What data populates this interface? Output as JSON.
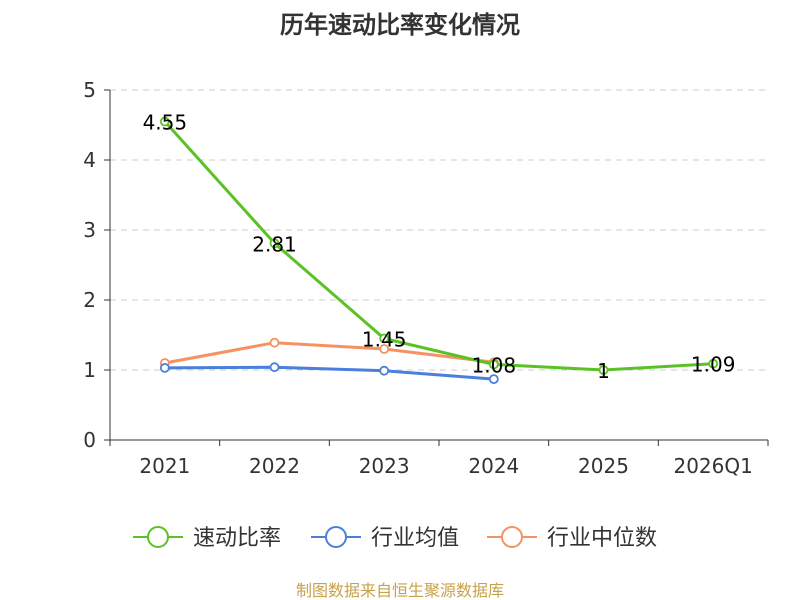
{
  "chart_data": {
    "type": "line",
    "title": "历年速动比率变化情况",
    "categories": [
      "2021",
      "2022",
      "2023",
      "2024",
      "2025",
      "2026Q1"
    ],
    "ylim": [
      0,
      5
    ],
    "yticks": [
      "0",
      "1",
      "2",
      "3",
      "4",
      "5"
    ],
    "grid": true,
    "legend_position": "bottom",
    "series": [
      {
        "name": "速动比率",
        "color": "#5bc225",
        "values": [
          4.55,
          2.81,
          1.45,
          1.08,
          1,
          1.09
        ],
        "labels": [
          "4.55",
          "2.81",
          "1.45",
          "1.08",
          "1",
          "1.09"
        ]
      },
      {
        "name": "行业均值",
        "color": "#4a7fdc",
        "values": [
          1.03,
          1.04,
          0.99,
          0.87,
          null,
          null
        ]
      },
      {
        "name": "行业中位数",
        "color": "#f59262",
        "values": [
          1.1,
          1.39,
          1.3,
          1.11,
          null,
          null
        ]
      }
    ],
    "source": "制图数据来自恒生聚源数据库"
  }
}
